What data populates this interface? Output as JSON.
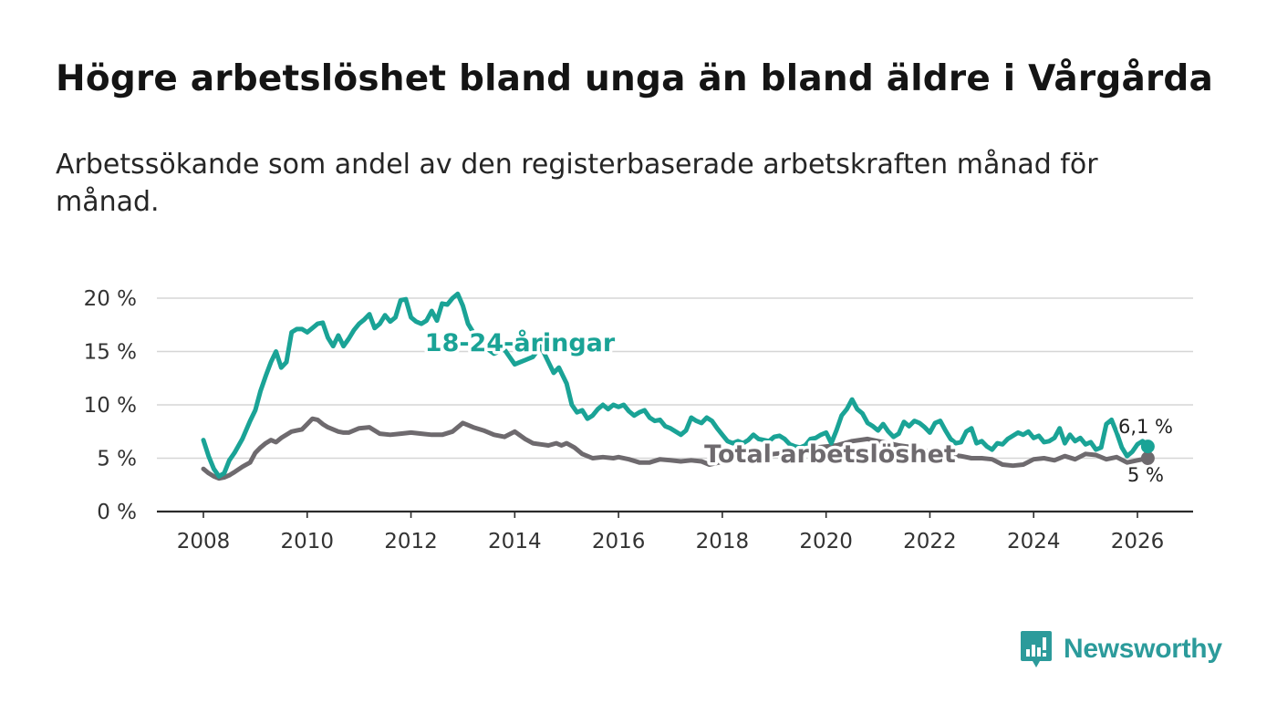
{
  "title": "Högre arbetslöshet bland unga än bland äldre i Vårgårda",
  "subtitle": "Arbetssökande som andel av den registerbaserade arbetskraften månad för månad.",
  "brand": {
    "name": "Newsworthy",
    "color": "#2c9b9b"
  },
  "chart_data": {
    "type": "line",
    "title": "Högre arbetslöshet bland unga än bland äldre i Vårgårda",
    "xlabel": "",
    "ylabel": "",
    "xlim": [
      2007.5,
      2027.1
    ],
    "ylim": [
      0,
      20
    ],
    "grid": true,
    "x_ticks": [
      2008,
      2010,
      2012,
      2014,
      2016,
      2018,
      2020,
      2022,
      2024,
      2026
    ],
    "x_tick_labels": [
      "2008",
      "2010",
      "2012",
      "2014",
      "2016",
      "2018",
      "2020",
      "2022",
      "2024",
      "2026"
    ],
    "y_ticks": [
      0,
      5,
      10,
      15,
      20
    ],
    "y_tick_labels": [
      "0 %",
      "5 %",
      "10 %",
      "15 %",
      "20 %"
    ],
    "series": [
      {
        "name": "18-24-åringar",
        "label": "18-24-åringar",
        "color": "#1aa396",
        "end_label": "6,1 %",
        "points": [
          [
            2008.0,
            6.7
          ],
          [
            2008.1,
            5.2
          ],
          [
            2008.2,
            4.0
          ],
          [
            2008.3,
            3.3
          ],
          [
            2008.4,
            3.6
          ],
          [
            2008.5,
            4.8
          ],
          [
            2008.6,
            5.5
          ],
          [
            2008.75,
            6.8
          ],
          [
            2008.9,
            8.5
          ],
          [
            2009.0,
            9.5
          ],
          [
            2009.1,
            11.3
          ],
          [
            2009.2,
            12.7
          ],
          [
            2009.3,
            14.0
          ],
          [
            2009.4,
            15.0
          ],
          [
            2009.5,
            13.5
          ],
          [
            2009.6,
            14.0
          ],
          [
            2009.7,
            16.8
          ],
          [
            2009.8,
            17.1
          ],
          [
            2009.9,
            17.1
          ],
          [
            2010.0,
            16.8
          ],
          [
            2010.1,
            17.2
          ],
          [
            2010.2,
            17.6
          ],
          [
            2010.3,
            17.7
          ],
          [
            2010.4,
            16.3
          ],
          [
            2010.5,
            15.5
          ],
          [
            2010.6,
            16.5
          ],
          [
            2010.7,
            15.5
          ],
          [
            2010.8,
            16.2
          ],
          [
            2010.9,
            17.0
          ],
          [
            2011.0,
            17.6
          ],
          [
            2011.1,
            18.0
          ],
          [
            2011.2,
            18.5
          ],
          [
            2011.3,
            17.2
          ],
          [
            2011.4,
            17.6
          ],
          [
            2011.5,
            18.4
          ],
          [
            2011.6,
            17.8
          ],
          [
            2011.7,
            18.2
          ],
          [
            2011.8,
            19.8
          ],
          [
            2011.9,
            19.9
          ],
          [
            2012.0,
            18.2
          ],
          [
            2012.1,
            17.8
          ],
          [
            2012.2,
            17.6
          ],
          [
            2012.3,
            17.9
          ],
          [
            2012.4,
            18.8
          ],
          [
            2012.5,
            17.9
          ],
          [
            2012.6,
            19.5
          ],
          [
            2012.7,
            19.4
          ],
          [
            2012.8,
            20.0
          ],
          [
            2012.9,
            20.4
          ],
          [
            2013.0,
            19.3
          ],
          [
            2013.1,
            17.6
          ],
          [
            2013.2,
            16.8
          ],
          [
            2013.3,
            16.2
          ],
          [
            2013.4,
            15.5
          ],
          [
            2013.6,
            14.8
          ],
          [
            2013.8,
            15.2
          ],
          [
            2013.9,
            14.5
          ],
          [
            2014.0,
            13.8
          ],
          [
            2014.2,
            14.2
          ],
          [
            2014.35,
            14.5
          ],
          [
            2014.5,
            15.5
          ],
          [
            2014.65,
            14.0
          ],
          [
            2014.75,
            13.0
          ],
          [
            2014.85,
            13.5
          ],
          [
            2015.0,
            12.0
          ],
          [
            2015.1,
            10.0
          ],
          [
            2015.2,
            9.3
          ],
          [
            2015.3,
            9.5
          ],
          [
            2015.4,
            8.7
          ],
          [
            2015.5,
            9.0
          ],
          [
            2015.6,
            9.6
          ],
          [
            2015.7,
            10.0
          ],
          [
            2015.8,
            9.6
          ],
          [
            2015.9,
            10.0
          ],
          [
            2016.0,
            9.8
          ],
          [
            2016.1,
            10.0
          ],
          [
            2016.2,
            9.4
          ],
          [
            2016.3,
            9.0
          ],
          [
            2016.4,
            9.3
          ],
          [
            2016.5,
            9.5
          ],
          [
            2016.6,
            8.8
          ],
          [
            2016.7,
            8.5
          ],
          [
            2016.8,
            8.6
          ],
          [
            2016.9,
            8.0
          ],
          [
            2017.0,
            7.8
          ],
          [
            2017.1,
            7.5
          ],
          [
            2017.2,
            7.2
          ],
          [
            2017.3,
            7.6
          ],
          [
            2017.4,
            8.8
          ],
          [
            2017.5,
            8.5
          ],
          [
            2017.6,
            8.3
          ],
          [
            2017.7,
            8.8
          ],
          [
            2017.8,
            8.5
          ],
          [
            2017.9,
            7.8
          ],
          [
            2018.0,
            7.2
          ],
          [
            2018.1,
            6.6
          ],
          [
            2018.2,
            6.4
          ],
          [
            2018.3,
            6.6
          ],
          [
            2018.4,
            6.4
          ],
          [
            2018.5,
            6.7
          ],
          [
            2018.6,
            7.2
          ],
          [
            2018.7,
            6.8
          ],
          [
            2018.8,
            6.7
          ],
          [
            2018.9,
            6.6
          ],
          [
            2019.0,
            7.0
          ],
          [
            2019.1,
            7.1
          ],
          [
            2019.2,
            6.8
          ],
          [
            2019.3,
            6.3
          ],
          [
            2019.4,
            6.1
          ],
          [
            2019.5,
            6.0
          ],
          [
            2019.6,
            6.2
          ],
          [
            2019.7,
            6.8
          ],
          [
            2019.8,
            6.9
          ],
          [
            2019.9,
            7.2
          ],
          [
            2020.0,
            7.4
          ],
          [
            2020.1,
            6.4
          ],
          [
            2020.2,
            7.6
          ],
          [
            2020.3,
            9.0
          ],
          [
            2020.4,
            9.6
          ],
          [
            2020.5,
            10.5
          ],
          [
            2020.6,
            9.6
          ],
          [
            2020.7,
            9.2
          ],
          [
            2020.8,
            8.3
          ],
          [
            2020.9,
            8.0
          ],
          [
            2021.0,
            7.6
          ],
          [
            2021.1,
            8.2
          ],
          [
            2021.2,
            7.5
          ],
          [
            2021.3,
            7.0
          ],
          [
            2021.4,
            7.3
          ],
          [
            2021.5,
            8.4
          ],
          [
            2021.6,
            8.0
          ],
          [
            2021.7,
            8.5
          ],
          [
            2021.8,
            8.3
          ],
          [
            2021.9,
            7.9
          ],
          [
            2022.0,
            7.4
          ],
          [
            2022.1,
            8.3
          ],
          [
            2022.2,
            8.5
          ],
          [
            2022.3,
            7.6
          ],
          [
            2022.4,
            6.8
          ],
          [
            2022.5,
            6.4
          ],
          [
            2022.6,
            6.5
          ],
          [
            2022.7,
            7.5
          ],
          [
            2022.8,
            7.8
          ],
          [
            2022.9,
            6.4
          ],
          [
            2023.0,
            6.6
          ],
          [
            2023.1,
            6.1
          ],
          [
            2023.2,
            5.8
          ],
          [
            2023.3,
            6.4
          ],
          [
            2023.4,
            6.3
          ],
          [
            2023.5,
            6.8
          ],
          [
            2023.6,
            7.1
          ],
          [
            2023.7,
            7.4
          ],
          [
            2023.8,
            7.2
          ],
          [
            2023.9,
            7.5
          ],
          [
            2024.0,
            6.9
          ],
          [
            2024.1,
            7.1
          ],
          [
            2024.2,
            6.5
          ],
          [
            2024.3,
            6.6
          ],
          [
            2024.4,
            6.9
          ],
          [
            2024.5,
            7.8
          ],
          [
            2024.6,
            6.4
          ],
          [
            2024.7,
            7.2
          ],
          [
            2024.8,
            6.6
          ],
          [
            2024.9,
            6.9
          ],
          [
            2025.0,
            6.3
          ],
          [
            2025.1,
            6.5
          ],
          [
            2025.2,
            5.8
          ],
          [
            2025.3,
            6.0
          ],
          [
            2025.4,
            8.2
          ],
          [
            2025.5,
            8.6
          ],
          [
            2025.6,
            7.4
          ],
          [
            2025.7,
            6.0
          ],
          [
            2025.8,
            5.2
          ],
          [
            2025.9,
            5.6
          ],
          [
            2026.0,
            6.3
          ],
          [
            2026.1,
            6.6
          ],
          [
            2026.2,
            6.1
          ]
        ]
      },
      {
        "name": "Total arbetslöshet",
        "label": "Total arbetslöshet",
        "color": "#6e6a6e",
        "end_label": "5 %",
        "points": [
          [
            2008.0,
            4.0
          ],
          [
            2008.1,
            3.6
          ],
          [
            2008.2,
            3.3
          ],
          [
            2008.3,
            3.1
          ],
          [
            2008.4,
            3.2
          ],
          [
            2008.5,
            3.4
          ],
          [
            2008.6,
            3.7
          ],
          [
            2008.75,
            4.2
          ],
          [
            2008.9,
            4.6
          ],
          [
            2009.0,
            5.5
          ],
          [
            2009.1,
            6.0
          ],
          [
            2009.2,
            6.4
          ],
          [
            2009.3,
            6.7
          ],
          [
            2009.4,
            6.5
          ],
          [
            2009.5,
            6.9
          ],
          [
            2009.6,
            7.2
          ],
          [
            2009.7,
            7.5
          ],
          [
            2009.8,
            7.6
          ],
          [
            2009.9,
            7.7
          ],
          [
            2010.0,
            8.2
          ],
          [
            2010.1,
            8.7
          ],
          [
            2010.2,
            8.6
          ],
          [
            2010.3,
            8.2
          ],
          [
            2010.4,
            7.9
          ],
          [
            2010.5,
            7.7
          ],
          [
            2010.6,
            7.5
          ],
          [
            2010.7,
            7.4
          ],
          [
            2010.8,
            7.4
          ],
          [
            2010.9,
            7.6
          ],
          [
            2011.0,
            7.8
          ],
          [
            2011.2,
            7.9
          ],
          [
            2011.4,
            7.3
          ],
          [
            2011.6,
            7.2
          ],
          [
            2011.8,
            7.3
          ],
          [
            2012.0,
            7.4
          ],
          [
            2012.2,
            7.3
          ],
          [
            2012.4,
            7.2
          ],
          [
            2012.6,
            7.2
          ],
          [
            2012.8,
            7.5
          ],
          [
            2013.0,
            8.3
          ],
          [
            2013.1,
            8.1
          ],
          [
            2013.2,
            7.9
          ],
          [
            2013.4,
            7.6
          ],
          [
            2013.6,
            7.2
          ],
          [
            2013.8,
            7.0
          ],
          [
            2014.0,
            7.5
          ],
          [
            2014.2,
            6.8
          ],
          [
            2014.35,
            6.4
          ],
          [
            2014.5,
            6.3
          ],
          [
            2014.65,
            6.2
          ],
          [
            2014.8,
            6.4
          ],
          [
            2014.9,
            6.2
          ],
          [
            2015.0,
            6.4
          ],
          [
            2015.15,
            6.0
          ],
          [
            2015.3,
            5.4
          ],
          [
            2015.5,
            5.0
          ],
          [
            2015.7,
            5.1
          ],
          [
            2015.9,
            5.0
          ],
          [
            2016.0,
            5.1
          ],
          [
            2016.2,
            4.9
          ],
          [
            2016.4,
            4.6
          ],
          [
            2016.6,
            4.6
          ],
          [
            2016.8,
            4.9
          ],
          [
            2017.0,
            4.8
          ],
          [
            2017.2,
            4.7
          ],
          [
            2017.4,
            4.8
          ],
          [
            2017.6,
            4.7
          ],
          [
            2017.75,
            4.4
          ],
          [
            2018.2,
            4.9
          ],
          [
            2018.6,
            5.1
          ],
          [
            2019.0,
            5.4
          ],
          [
            2019.4,
            5.6
          ],
          [
            2019.8,
            6.0
          ],
          [
            2020.2,
            6.2
          ],
          [
            2020.5,
            6.6
          ],
          [
            2020.8,
            6.8
          ],
          [
            2021.1,
            6.5
          ],
          [
            2021.4,
            6.2
          ],
          [
            2021.7,
            6.0
          ],
          [
            2022.0,
            5.6
          ],
          [
            2022.3,
            5.4
          ],
          [
            2022.6,
            5.2
          ],
          [
            2022.8,
            5.0
          ],
          [
            2023.0,
            5.0
          ],
          [
            2023.2,
            4.9
          ],
          [
            2023.4,
            4.4
          ],
          [
            2023.6,
            4.3
          ],
          [
            2023.8,
            4.4
          ],
          [
            2024.0,
            4.9
          ],
          [
            2024.2,
            5.0
          ],
          [
            2024.4,
            4.8
          ],
          [
            2024.6,
            5.2
          ],
          [
            2024.8,
            4.9
          ],
          [
            2025.0,
            5.4
          ],
          [
            2025.2,
            5.3
          ],
          [
            2025.4,
            4.9
          ],
          [
            2025.6,
            5.1
          ],
          [
            2025.8,
            4.6
          ],
          [
            2026.0,
            4.8
          ],
          [
            2026.2,
            5.0
          ]
        ]
      }
    ]
  }
}
